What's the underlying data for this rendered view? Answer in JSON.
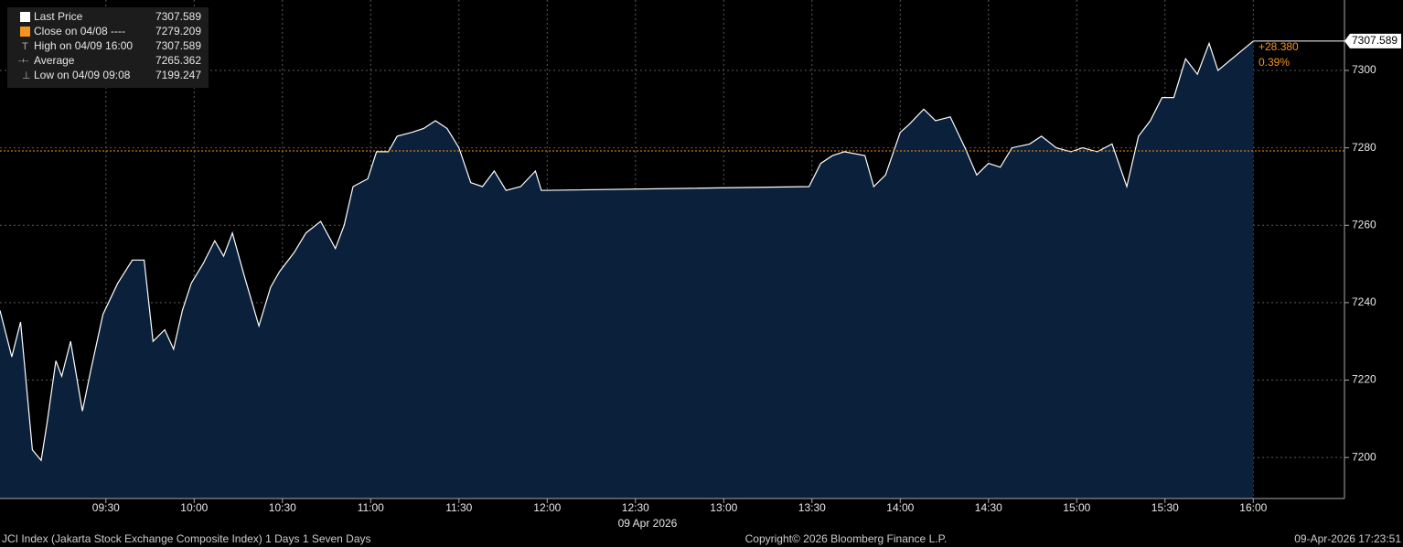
{
  "chart_data": {
    "type": "area",
    "x": [
      "08:54",
      "08:58",
      "09:01",
      "09:05",
      "09:08",
      "09:10",
      "09:13",
      "09:15",
      "09:18",
      "09:22",
      "09:25",
      "09:29",
      "09:34",
      "09:39",
      "09:43",
      "09:46",
      "09:50",
      "09:53",
      "09:56",
      "09:59",
      "10:03",
      "10:07",
      "10:10",
      "10:13",
      "10:17",
      "10:22",
      "10:26",
      "10:29",
      "10:34",
      "10:38",
      "10:43",
      "10:48",
      "10:51",
      "10:54",
      "10:59",
      "11:02",
      "11:06",
      "11:09",
      "11:14",
      "11:18",
      "11:22",
      "11:26",
      "11:30",
      "11:34",
      "11:38",
      "11:42",
      "11:46",
      "11:51",
      "11:56",
      "11:58",
      "13:29",
      "13:33",
      "13:37",
      "13:41",
      "13:48",
      "13:51",
      "13:55",
      "14:00",
      "14:03",
      "14:08",
      "14:12",
      "14:17",
      "14:22",
      "14:26",
      "14:30",
      "14:34",
      "14:38",
      "14:44",
      "14:48",
      "14:53",
      "14:58",
      "15:02",
      "15:07",
      "15:12",
      "15:17",
      "15:21",
      "15:25",
      "15:29",
      "15:33",
      "15:37",
      "15:41",
      "15:45",
      "15:48",
      "16:00"
    ],
    "series": [
      {
        "name": "Last Price",
        "color": "#ffffff",
        "fill": "#0b203b",
        "values": [
          7238,
          7226,
          7235,
          7202,
          7199.247,
          7209,
          7225,
          7221,
          7230,
          7212,
          7223,
          7237,
          7245,
          7251,
          7251,
          7230,
          7233,
          7228,
          7238,
          7245,
          7250,
          7256,
          7252,
          7258,
          7247,
          7234,
          7244,
          7248,
          7253,
          7258,
          7261,
          7254,
          7260,
          7270,
          7272,
          7279,
          7279,
          7283,
          7284,
          7285,
          7287,
          7285,
          7280,
          7271,
          7270,
          7274,
          7269,
          7270,
          7274,
          7269,
          7270,
          7276,
          7278,
          7279,
          7278,
          7270,
          7273,
          7284,
          7286,
          7290,
          7287,
          7288,
          7280,
          7273,
          7276,
          7275,
          7280,
          7281,
          7283,
          7280,
          7279,
          7280,
          7279,
          7281,
          7270,
          7283,
          7287,
          7293,
          7293,
          7303,
          7299,
          7307,
          7300,
          7307.589
        ]
      }
    ],
    "legend": [
      {
        "label": "Close on 04/08 ----",
        "value": 7279.209,
        "color": "#f7931e"
      },
      {
        "label": "High on 04/09 16:00",
        "value": 7307.589
      },
      {
        "label": "Average",
        "value": 7265.362
      },
      {
        "label": "Low on 04/09 09:08",
        "value": 7199.247
      }
    ],
    "change": [
      {
        "value": 28.38,
        "label": "+28.380"
      },
      {
        "value": 0.39,
        "label": "0.39%"
      }
    ],
    "xlim": [
      "08:54",
      "16:31"
    ],
    "xticks": [
      "09:30",
      "10:00",
      "10:30",
      "11:00",
      "11:30",
      "12:00",
      "12:30",
      "13:00",
      "13:30",
      "14:00",
      "14:30",
      "15:00",
      "15:30",
      "16:00"
    ],
    "x_date": "09 Apr 2026",
    "ylim": [
      7189.4,
      7318.2
    ],
    "yticks": [
      7200,
      7220,
      7240,
      7260,
      7280,
      7300
    ],
    "grid": true
  },
  "footer": {
    "left": "JCI Index (Jakarta Stock Exchange Composite Index) 1 Days 1 Seven Days",
    "center": "Copyright© 2026 Bloomberg Finance L.P.",
    "right": "09-Apr-2026 17:23:51"
  }
}
